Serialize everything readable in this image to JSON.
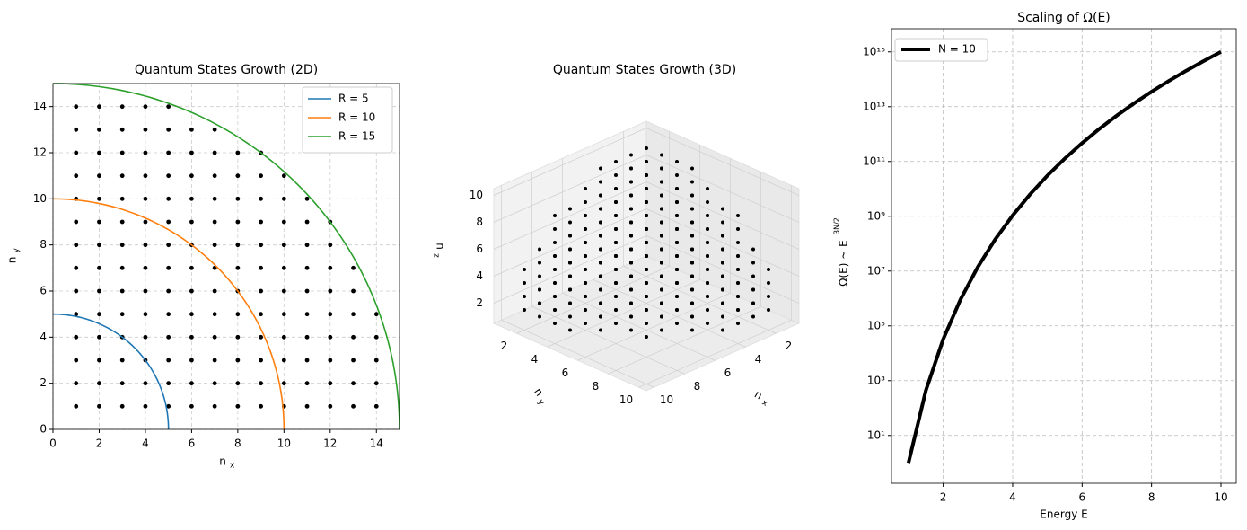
{
  "chart_data": [
    {
      "type": "scatter2d",
      "title": "Quantum States Growth (2D)",
      "xlabel": "n",
      "xlabel_sub": "x",
      "ylabel": "n",
      "ylabel_sub": "y",
      "xlim": [
        0,
        15
      ],
      "ylim": [
        0,
        15
      ],
      "xticks": [
        0,
        2,
        4,
        6,
        8,
        10,
        12,
        14
      ],
      "yticks": [
        0,
        2,
        4,
        6,
        8,
        10,
        12,
        14
      ],
      "grid": true,
      "legend": "upper right",
      "point_color": "#000000",
      "rows": [
        {
          "y": 1,
          "x": [
            1,
            2,
            3,
            4,
            5,
            6,
            7,
            8,
            9,
            10,
            11,
            12,
            13,
            14
          ]
        },
        {
          "y": 2,
          "x": [
            1,
            2,
            3,
            4,
            5,
            6,
            7,
            8,
            9,
            10,
            11,
            12,
            13,
            14
          ]
        },
        {
          "y": 3,
          "x": [
            1,
            2,
            3,
            4,
            5,
            6,
            7,
            8,
            9,
            10,
            11,
            12,
            13,
            14
          ]
        },
        {
          "y": 4,
          "x": [
            1,
            2,
            3,
            4,
            5,
            6,
            7,
            8,
            9,
            10,
            11,
            12,
            13,
            14
          ]
        },
        {
          "y": 5,
          "x": [
            1,
            2,
            3,
            4,
            5,
            6,
            7,
            8,
            9,
            10,
            11,
            12,
            13,
            14
          ]
        },
        {
          "y": 6,
          "x": [
            1,
            2,
            3,
            4,
            5,
            6,
            7,
            8,
            9,
            10,
            11,
            12,
            13
          ]
        },
        {
          "y": 7,
          "x": [
            1,
            2,
            3,
            4,
            5,
            6,
            7,
            8,
            9,
            10,
            11,
            12,
            13
          ]
        },
        {
          "y": 8,
          "x": [
            1,
            2,
            3,
            4,
            5,
            6,
            7,
            8,
            9,
            10,
            11,
            12
          ]
        },
        {
          "y": 9,
          "x": [
            1,
            2,
            3,
            4,
            5,
            6,
            7,
            8,
            9,
            10,
            11,
            12
          ]
        },
        {
          "y": 10,
          "x": [
            1,
            2,
            3,
            4,
            5,
            6,
            7,
            8,
            9,
            10,
            11
          ]
        },
        {
          "y": 11,
          "x": [
            1,
            2,
            3,
            4,
            5,
            6,
            7,
            8,
            9,
            10
          ]
        },
        {
          "y": 12,
          "x": [
            1,
            2,
            3,
            4,
            5,
            6,
            7,
            8,
            9
          ]
        },
        {
          "y": 13,
          "x": [
            1,
            2,
            3,
            4,
            5,
            6,
            7
          ]
        },
        {
          "y": 14,
          "x": [
            1,
            2,
            3,
            4,
            5
          ]
        }
      ],
      "series": [
        {
          "name": "R = 5",
          "color": "#1f77b4",
          "radius": 5
        },
        {
          "name": "R = 10",
          "color": "#ff7f0e",
          "radius": 10
        },
        {
          "name": "R = 15",
          "color": "#2ca02c",
          "radius": 15
        }
      ]
    },
    {
      "type": "scatter3d",
      "title": "Quantum States Growth (3D)",
      "xlabel": "n",
      "xlabel_sub": "x",
      "ylabel": "n",
      "ylabel_sub": "y",
      "zlabel": "n",
      "zlabel_sub": "z",
      "xlim": [
        0.5,
        10.5
      ],
      "ylim": [
        0.5,
        10.5
      ],
      "zlim": [
        0.5,
        10.5
      ],
      "xticks": [
        2,
        4,
        6,
        8,
        10
      ],
      "yticks": [
        2,
        4,
        6,
        8,
        10
      ],
      "zticks": [
        2,
        4,
        6,
        8,
        10
      ],
      "point_color": "#000000",
      "columns": [
        [
          1,
          1,
          9
        ],
        [
          1,
          2,
          9
        ],
        [
          1,
          3,
          9
        ],
        [
          1,
          4,
          9
        ],
        [
          1,
          5,
          8
        ],
        [
          1,
          6,
          7
        ],
        [
          1,
          7,
          7
        ],
        [
          1,
          8,
          5
        ],
        [
          1,
          9,
          4
        ],
        [
          2,
          1,
          9
        ],
        [
          2,
          2,
          9
        ],
        [
          2,
          3,
          9
        ],
        [
          2,
          4,
          8
        ],
        [
          2,
          5,
          8
        ],
        [
          2,
          6,
          7
        ],
        [
          2,
          7,
          6
        ],
        [
          2,
          8,
          5
        ],
        [
          2,
          9,
          3
        ],
        [
          3,
          1,
          9
        ],
        [
          3,
          2,
          9
        ],
        [
          3,
          3,
          9
        ],
        [
          3,
          4,
          8
        ],
        [
          3,
          5,
          8
        ],
        [
          3,
          6,
          7
        ],
        [
          3,
          7,
          6
        ],
        [
          3,
          8,
          5
        ],
        [
          3,
          9,
          3
        ],
        [
          4,
          1,
          9
        ],
        [
          4,
          2,
          8
        ],
        [
          4,
          3,
          8
        ],
        [
          4,
          4,
          8
        ],
        [
          4,
          5,
          7
        ],
        [
          4,
          6,
          6
        ],
        [
          4,
          7,
          5
        ],
        [
          4,
          8,
          4
        ],
        [
          4,
          9,
          1
        ],
        [
          5,
          1,
          8
        ],
        [
          5,
          2,
          8
        ],
        [
          5,
          3,
          8
        ],
        [
          5,
          4,
          7
        ],
        [
          5,
          5,
          7
        ],
        [
          5,
          6,
          6
        ],
        [
          5,
          7,
          5
        ],
        [
          5,
          8,
          3
        ],
        [
          6,
          1,
          7
        ],
        [
          6,
          2,
          7
        ],
        [
          6,
          3,
          7
        ],
        [
          6,
          4,
          6
        ],
        [
          6,
          5,
          6
        ],
        [
          6,
          6,
          5
        ],
        [
          6,
          7,
          3
        ],
        [
          7,
          1,
          7
        ],
        [
          7,
          2,
          6
        ],
        [
          7,
          3,
          6
        ],
        [
          7,
          4,
          5
        ],
        [
          7,
          5,
          5
        ],
        [
          7,
          6,
          3
        ],
        [
          7,
          7,
          1
        ],
        [
          8,
          1,
          5
        ],
        [
          8,
          2,
          5
        ],
        [
          8,
          3,
          5
        ],
        [
          8,
          4,
          4
        ],
        [
          8,
          5,
          3
        ],
        [
          9,
          1,
          4
        ],
        [
          9,
          2,
          3
        ],
        [
          9,
          3,
          3
        ],
        [
          9,
          4,
          1
        ]
      ]
    },
    {
      "type": "line",
      "title": "Scaling of Ω(E)",
      "xlabel": "Energy E",
      "ylabel": "Ω(E) ~ E",
      "ylabel_sup": "3N/2",
      "log_y": true,
      "grid": true,
      "legend": "upper left",
      "xlim": [
        0.51,
        10.44
      ],
      "ylim": [
        0.18,
        7000000000000000.0
      ],
      "xticks": [
        2,
        4,
        6,
        8,
        10
      ],
      "yticks": [
        {
          "value": 10,
          "label": "10¹"
        },
        {
          "value": 1000,
          "label": "10³"
        },
        {
          "value": 100000,
          "label": "10⁵"
        },
        {
          "value": 10000000,
          "label": "10⁷"
        },
        {
          "value": 1000000000,
          "label": "10⁹"
        },
        {
          "value": 100000000000,
          "label": "10¹¹"
        },
        {
          "value": 10000000000000,
          "label": "10¹³"
        },
        {
          "value": 1000000000000000,
          "label": "10¹⁵"
        }
      ],
      "x": [
        1,
        1.5,
        2,
        2.5,
        3,
        3.5,
        4,
        4.5,
        5,
        5.5,
        6,
        6.5,
        7,
        7.5,
        8,
        8.5,
        9,
        9.5,
        10
      ],
      "series": [
        {
          "name": "N = 10",
          "color": "#000000",
          "values": [
            1,
            437.89,
            32768,
            931322.6,
            14348907,
            144884000,
            1073741824,
            6283300000,
            30518000000,
            127479000000,
            470180000000,
            1562060000000,
            4747600000000,
            13363500000000,
            35184000000000,
            87354000000000,
            205890000000000,
            463290000000000,
            1000000000000000
          ]
        }
      ]
    }
  ]
}
